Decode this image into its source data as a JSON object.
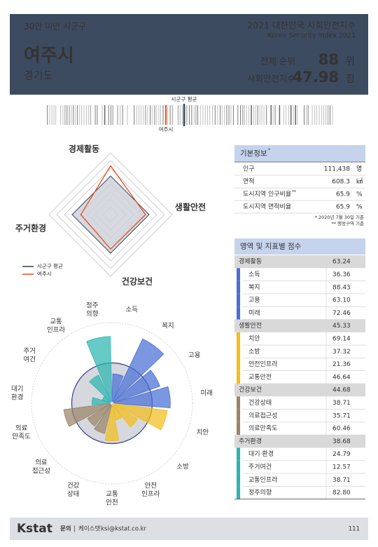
{
  "header": {
    "category": "30만 미만 시군구",
    "region": "여주시",
    "province": "경기도",
    "title": "2021 대한민국 사회안전지수",
    "subtitle": "Korea Security Index 2021",
    "rank_label": "전체 순위",
    "rank": 88,
    "rank_unit": "위",
    "index_label": "사회안전지수",
    "index": 47.98,
    "index_unit": "점"
  },
  "strip": {
    "average_label": "시군구 평균",
    "region_label": "여주시"
  },
  "radar": {
    "axes": [
      "경제활동",
      "생활안전",
      "건강보건",
      "주거환경"
    ],
    "rlim": [
      0,
      80
    ],
    "series": [
      {
        "name": "시군구 평균",
        "color": "#3c4a5e",
        "values": [
          50,
          50,
          50,
          50
        ]
      },
      {
        "name": "여주시",
        "color": "#e8562a"
      }
    ]
  },
  "polar": {
    "rlim": [
      0,
      100
    ],
    "average": 50,
    "labels": [
      [
        "소득"
      ],
      [
        "복지"
      ],
      [
        "고용"
      ],
      [
        "미래"
      ],
      [
        "치안"
      ],
      [
        "소방"
      ],
      [
        "안전",
        "인프라"
      ],
      [
        "교통",
        "안전"
      ],
      [
        "건강",
        "상태"
      ],
      [
        "의료",
        "접근성"
      ],
      [
        "의료",
        "만족도"
      ],
      [
        "대기",
        "환경"
      ],
      [
        "주거",
        "여건"
      ],
      [
        "교통",
        "인프라"
      ],
      [
        "정주",
        "의향"
      ]
    ]
  },
  "basic": {
    "title": "기본정보",
    "title_mark": "*",
    "rows": [
      {
        "label": "인구",
        "value": "111,438",
        "unit": "명"
      },
      {
        "label": "면적",
        "value": 608.3,
        "unit": "㎢"
      },
      {
        "label": "도시지역 인구비율",
        "mark": "**",
        "value": 65.9,
        "unit": "%"
      },
      {
        "label": "도시지역 면적비율",
        "value": 65.9,
        "unit": "%"
      }
    ],
    "notes": [
      "* 2020년 7월 30일 기준",
      "** 행정구역 기준"
    ]
  },
  "scores": {
    "title": "영역 및 지표별 점수",
    "domains": [
      {
        "name": "경제활동",
        "score": 63.24,
        "color": "#4a6fd6",
        "indicators": [
          {
            "name": "소득",
            "score": 36.36
          },
          {
            "name": "복지",
            "score": 88.43
          },
          {
            "name": "고용",
            "score": {
              "value": 63.1,
              "label": "63.10"
            }
          },
          {
            "name": "미래",
            "score": 72.46
          }
        ]
      },
      {
        "name": "생활안전",
        "score": 45.33,
        "color": "#f2be1a",
        "indicators": [
          {
            "name": "치안",
            "score": 69.14
          },
          {
            "name": "소방",
            "score": 37.32
          },
          {
            "name": "안전인프라",
            "score": 21.36
          },
          {
            "name": "교통안전",
            "score": 46.64
          }
        ]
      },
      {
        "name": "건강보건",
        "score": 44.68,
        "color": "#9a8468",
        "indicators": [
          {
            "name": "건강상태",
            "score": 38.71
          },
          {
            "name": "의료접근성",
            "score": 35.71
          },
          {
            "name": "의료만족도",
            "score": 60.46
          }
        ]
      },
      {
        "name": "주거환경",
        "score": 38.68,
        "color": "#2bb5b0",
        "indicators": [
          {
            "name": "대기·환경",
            "score": 24.79
          },
          {
            "name": "주거여건",
            "score": 12.57
          },
          {
            "name": "교통인프라",
            "score": 38.71
          },
          {
            "name": "정주의향",
            "score": {
              "value": 82.8,
              "label": "82.80"
            }
          }
        ]
      }
    ]
  },
  "footer": {
    "logo_k": "K",
    "logo_rest": "stat",
    "contact_label": "문의",
    "separator": "|",
    "org": "케이스탯",
    "email": "ksi@kstat.co.kr",
    "page": "111"
  }
}
